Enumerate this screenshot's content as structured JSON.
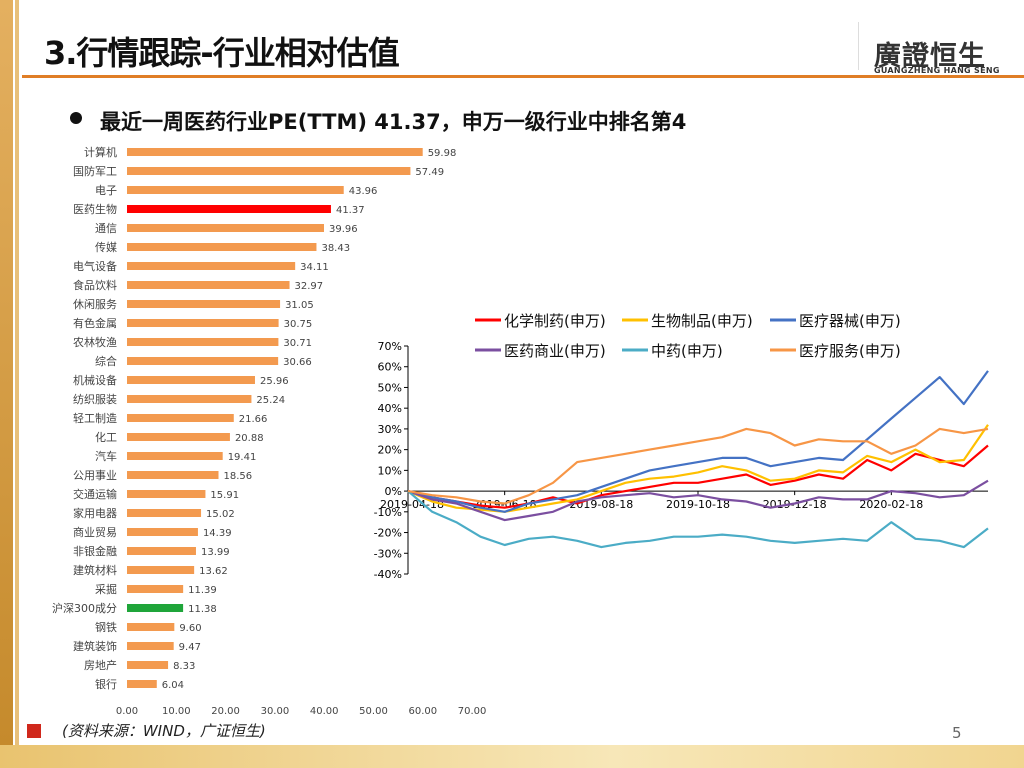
{
  "header": {
    "title": "3.行情跟踪-行业相对估值",
    "logo_cn": "廣證恒生",
    "logo_en": "GUANGZHENG HANG SENG"
  },
  "subtitle": "最近一周医药行业PE(TTM) 41.37，申万一级行业中排名第4",
  "footer": {
    "source": "(资料来源：WIND，广证恒生)",
    "page": "5"
  },
  "colors": {
    "accent": "#e07e26",
    "bar": "#f39a4f",
    "highlight": "#ff0000",
    "benchmark": "#1fa53a"
  },
  "chart_data": [
    {
      "type": "bar",
      "orientation": "horizontal",
      "categories": [
        "计算机",
        "国防军工",
        "电子",
        "医药生物",
        "通信",
        "传媒",
        "电气设备",
        "食品饮料",
        "休闲服务",
        "有色金属",
        "农林牧渔",
        "综合",
        "机械设备",
        "纺织服装",
        "轻工制造",
        "化工",
        "汽车",
        "公用事业",
        "交通运输",
        "家用电器",
        "商业贸易",
        "非银金融",
        "建筑材料",
        "采掘",
        "沪深300成分",
        "钢铁",
        "建筑装饰",
        "房地产",
        "银行"
      ],
      "values": [
        59.98,
        57.49,
        43.96,
        41.37,
        39.96,
        38.43,
        34.11,
        32.97,
        31.05,
        30.75,
        30.71,
        30.66,
        25.96,
        25.24,
        21.66,
        20.88,
        19.41,
        18.56,
        15.91,
        15.02,
        14.39,
        13.99,
        13.62,
        11.39,
        11.38,
        9.6,
        9.47,
        8.33,
        6.04
      ],
      "value_labels": [
        "59.98",
        "57.49",
        "43.96",
        "41.37",
        "39.96",
        "38.43",
        "34.11",
        "32.97",
        "31.05",
        "30.75",
        "30.71",
        "30.66",
        "25.96",
        "25.24",
        "21.66",
        "20.88",
        "19.41",
        "18.56",
        "15.91",
        "15.02",
        "14.39",
        "13.99",
        "13.62",
        "11.39",
        "11.38",
        "9.60",
        "9.47",
        "8.33",
        "6.04"
      ],
      "highlight": {
        "医药生物": "red",
        "沪深300成分": "green"
      },
      "xlim": [
        0,
        70
      ],
      "xticks": [
        "0.00",
        "10.00",
        "20.00",
        "30.00",
        "40.00",
        "50.00",
        "60.00",
        "70.00"
      ]
    },
    {
      "type": "line",
      "ylim": [
        -40,
        70
      ],
      "yticks": [
        "70%",
        "60%",
        "50%",
        "40%",
        "30%",
        "20%",
        "10%",
        "0%",
        "-10%",
        "-20%",
        "-30%",
        "-40%"
      ],
      "xticks": [
        "2019-04-18",
        "2019-06-18",
        "2019-08-18",
        "2019-10-18",
        "2019-12-18",
        "2020-02-18"
      ],
      "x_index_range": [
        0,
        12
      ],
      "series": [
        {
          "name": "化学制药(申万)",
          "color": "#ff0000",
          "x": [
            0,
            0.5,
            1,
            1.5,
            2,
            2.5,
            3,
            3.5,
            4,
            4.5,
            5,
            5.5,
            6,
            6.5,
            7,
            7.5,
            8,
            8.5,
            9,
            9.5,
            10,
            10.5,
            11,
            11.5,
            12
          ],
          "values": [
            0,
            -3,
            -5,
            -7,
            -8,
            -6,
            -3,
            -6,
            -2,
            0,
            2,
            4,
            4,
            6,
            8,
            3,
            5,
            8,
            6,
            15,
            10,
            18,
            15,
            12,
            22
          ]
        },
        {
          "name": "生物制品(申万)",
          "color": "#ffc000",
          "x": [
            0,
            0.5,
            1,
            1.5,
            2,
            2.5,
            3,
            3.5,
            4,
            4.5,
            5,
            5.5,
            6,
            6.5,
            7,
            7.5,
            8,
            8.5,
            9,
            9.5,
            10,
            10.5,
            11,
            11.5,
            12
          ],
          "values": [
            0,
            -5,
            -8,
            -9,
            -10,
            -8,
            -6,
            -4,
            0,
            4,
            6,
            7,
            9,
            12,
            10,
            5,
            6,
            10,
            9,
            17,
            14,
            20,
            14,
            15,
            32
          ]
        },
        {
          "name": "医疗器械(申万)",
          "color": "#4472c4",
          "x": [
            0,
            0.5,
            1,
            1.5,
            2,
            2.5,
            3,
            3.5,
            4,
            4.5,
            5,
            5.5,
            6,
            6.5,
            7,
            7.5,
            8,
            8.5,
            9,
            9.5,
            10,
            10.5,
            11,
            11.5,
            12
          ],
          "values": [
            0,
            -3,
            -5,
            -8,
            -10,
            -6,
            -4,
            -2,
            2,
            6,
            10,
            12,
            14,
            16,
            16,
            12,
            14,
            16,
            15,
            25,
            35,
            45,
            55,
            42,
            58
          ]
        },
        {
          "name": "医药商业(申万)",
          "color": "#7b4fa0",
          "x": [
            0,
            0.5,
            1,
            1.5,
            2,
            2.5,
            3,
            3.5,
            4,
            4.5,
            5,
            5.5,
            6,
            6.5,
            7,
            7.5,
            8,
            8.5,
            9,
            9.5,
            10,
            10.5,
            11,
            11.5,
            12
          ],
          "values": [
            0,
            -4,
            -6,
            -10,
            -14,
            -12,
            -10,
            -5,
            -3,
            -2,
            -1,
            -3,
            -2,
            -4,
            -5,
            -8,
            -6,
            -3,
            -4,
            -4,
            0,
            -1,
            -3,
            -2,
            5
          ]
        },
        {
          "name": "中药(申万)",
          "color": "#4bacc6",
          "x": [
            0,
            0.5,
            1,
            1.5,
            2,
            2.5,
            3,
            3.5,
            4,
            4.5,
            5,
            5.5,
            6,
            6.5,
            7,
            7.5,
            8,
            8.5,
            9,
            9.5,
            10,
            10.5,
            11,
            11.5,
            12
          ],
          "values": [
            0,
            -10,
            -15,
            -22,
            -26,
            -23,
            -22,
            -24,
            -27,
            -25,
            -24,
            -22,
            -22,
            -21,
            -22,
            -24,
            -25,
            -24,
            -23,
            -24,
            -15,
            -23,
            -24,
            -27,
            -18
          ]
        },
        {
          "name": "医疗服务(申万)",
          "color": "#f79646",
          "x": [
            0,
            0.5,
            1,
            1.5,
            2,
            2.5,
            3,
            3.5,
            4,
            4.5,
            5,
            5.5,
            6,
            6.5,
            7,
            7.5,
            8,
            8.5,
            9,
            9.5,
            10,
            10.5,
            11,
            11.5,
            12
          ],
          "values": [
            0,
            -2,
            -3,
            -5,
            -6,
            -2,
            4,
            14,
            16,
            18,
            20,
            22,
            24,
            26,
            30,
            28,
            22,
            25,
            24,
            24,
            18,
            22,
            30,
            28,
            30
          ]
        }
      ],
      "legend": "top"
    }
  ]
}
